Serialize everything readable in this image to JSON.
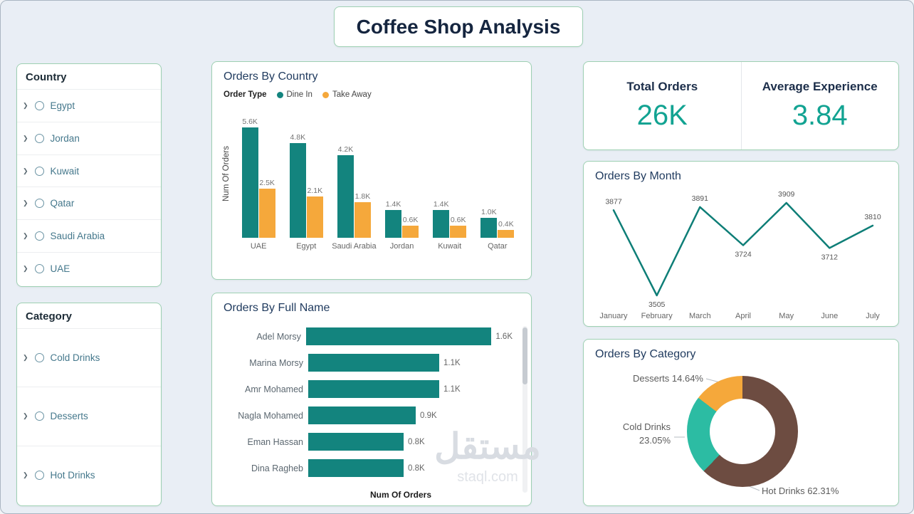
{
  "page": {
    "title": "Coffee Shop Analysis",
    "watermark": "مستقل",
    "watermark_sub": "staql.com"
  },
  "colors": {
    "teal": "#13847E",
    "orange": "#F5A83B",
    "brown": "#6D4C41",
    "mint": "#2CBCA3",
    "kpi_value": "#12A392"
  },
  "filters": {
    "country": {
      "title": "Country",
      "items": [
        "Egypt",
        "Jordan",
        "Kuwait",
        "Qatar",
        "Saudi Arabia",
        "UAE"
      ]
    },
    "category": {
      "title": "Category",
      "items": [
        "Cold Drinks",
        "Desserts",
        "Hot Drinks"
      ]
    }
  },
  "kpis": [
    {
      "label": "Total Orders",
      "value": "26K"
    },
    {
      "label": "Average Experience",
      "value": "3.84"
    }
  ],
  "chart_data": [
    {
      "type": "bar",
      "title": "Orders By Country",
      "legend_title": "Order Type",
      "legend_position": "top",
      "categories": [
        "UAE",
        "Egypt",
        "Saudi Arabia",
        "Jordan",
        "Kuwait",
        "Qatar"
      ],
      "series": [
        {
          "name": "Dine In",
          "color": "#13847E",
          "values": [
            5.6,
            4.8,
            4.2,
            1.4,
            1.4,
            1.0
          ],
          "labels": [
            "5.6K",
            "4.8K",
            "4.2K",
            "1.4K",
            "1.4K",
            "1.0K"
          ]
        },
        {
          "name": "Take Away",
          "color": "#F5A83B",
          "values": [
            2.5,
            2.1,
            1.8,
            0.6,
            0.6,
            0.4
          ],
          "labels": [
            "2.5K",
            "2.1K",
            "1.8K",
            "0.6K",
            "0.6K",
            "0.4K"
          ]
        }
      ],
      "xlabel": "",
      "ylabel": "Num Of Orders",
      "ylim": [
        0,
        6
      ],
      "grid": false
    },
    {
      "type": "bar",
      "orientation": "horizontal",
      "title": "Orders By Full Name",
      "categories": [
        "Adel Morsy",
        "Marina Morsy",
        "Amr Mohamed",
        "Nagla Mohamed",
        "Eman Hassan",
        "Dina Ragheb"
      ],
      "values": [
        1.6,
        1.1,
        1.1,
        0.9,
        0.8,
        0.8
      ],
      "labels": [
        "1.6K",
        "1.1K",
        "1.1K",
        "0.9K",
        "0.8K",
        "0.8K"
      ],
      "xlabel": "Num Of Orders",
      "ylabel": "",
      "xlim": [
        0,
        1.7
      ],
      "bar_color": "#13847E",
      "grid": false
    },
    {
      "type": "line",
      "title": "Orders By Month",
      "categories": [
        "January",
        "February",
        "March",
        "April",
        "May",
        "June",
        "July"
      ],
      "values": [
        3877,
        3505,
        3891,
        3724,
        3909,
        3712,
        3810
      ],
      "line_color": "#0E7E77",
      "ylim": [
        3400,
        4000
      ],
      "grid": false
    },
    {
      "type": "pie",
      "title": "Orders By Category",
      "donut": true,
      "slices": [
        {
          "label": "Hot Drinks",
          "pct": 62.31,
          "color": "#6D4C41",
          "display": "Hot Drinks 62.31%"
        },
        {
          "label": "Cold Drinks",
          "pct": 23.05,
          "color": "#2CBCA3",
          "display": "Cold Drinks\n23.05%"
        },
        {
          "label": "Desserts",
          "pct": 14.64,
          "color": "#F5A83B",
          "display": "Desserts 14.64%"
        }
      ]
    }
  ]
}
